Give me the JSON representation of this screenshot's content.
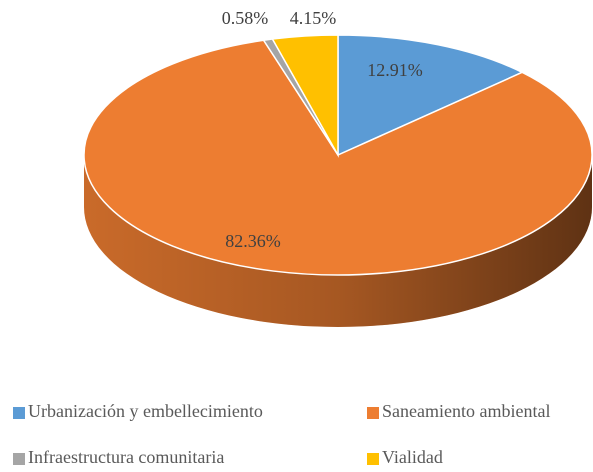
{
  "chart_data": {
    "type": "pie",
    "categories": [
      "Urbanización y embellecimiento",
      "Saneamiento ambiental",
      "Infraestructura comunitaria",
      "Vialidad"
    ],
    "values": [
      12.91,
      82.36,
      0.58,
      4.15
    ],
    "value_labels": [
      "12.91%",
      "82.36%",
      "0.58%",
      "4.15%"
    ],
    "colors": [
      "#5b9bd5",
      "#ed7d31",
      "#a5a5a5",
      "#ffc000"
    ]
  }
}
